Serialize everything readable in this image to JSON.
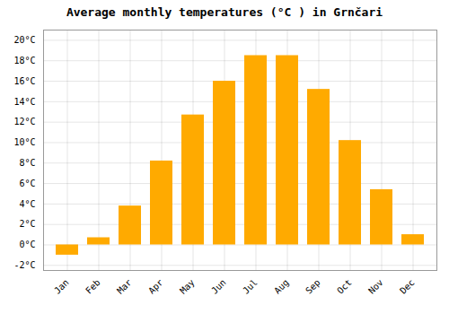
{
  "chart_data": {
    "type": "bar",
    "title": "Average monthly temperatures (°C ) in Grnčari",
    "categories": [
      "Jan",
      "Feb",
      "Mar",
      "Apr",
      "May",
      "Jun",
      "Jul",
      "Aug",
      "Sep",
      "Oct",
      "Nov",
      "Dec"
    ],
    "values": [
      -1.0,
      0.7,
      3.8,
      8.2,
      12.7,
      16.0,
      18.5,
      18.5,
      15.2,
      10.2,
      5.4,
      1.0
    ],
    "color": "#FFAA00",
    "ylim": [
      -2.5,
      21
    ],
    "yticks": [
      {
        "value": -2,
        "label": "-2°C"
      },
      {
        "value": 0,
        "label": "0°C"
      },
      {
        "value": 2,
        "label": "2°C"
      },
      {
        "value": 4,
        "label": "4°C"
      },
      {
        "value": 6,
        "label": "6°C"
      },
      {
        "value": 8,
        "label": "8°C"
      },
      {
        "value": 10,
        "label": "10°C"
      },
      {
        "value": 12,
        "label": "12°C"
      },
      {
        "value": 14,
        "label": "14°C"
      },
      {
        "value": 16,
        "label": "16°C"
      },
      {
        "value": 18,
        "label": "18°C"
      },
      {
        "value": 20,
        "label": "20°C"
      }
    ],
    "grid": true
  }
}
